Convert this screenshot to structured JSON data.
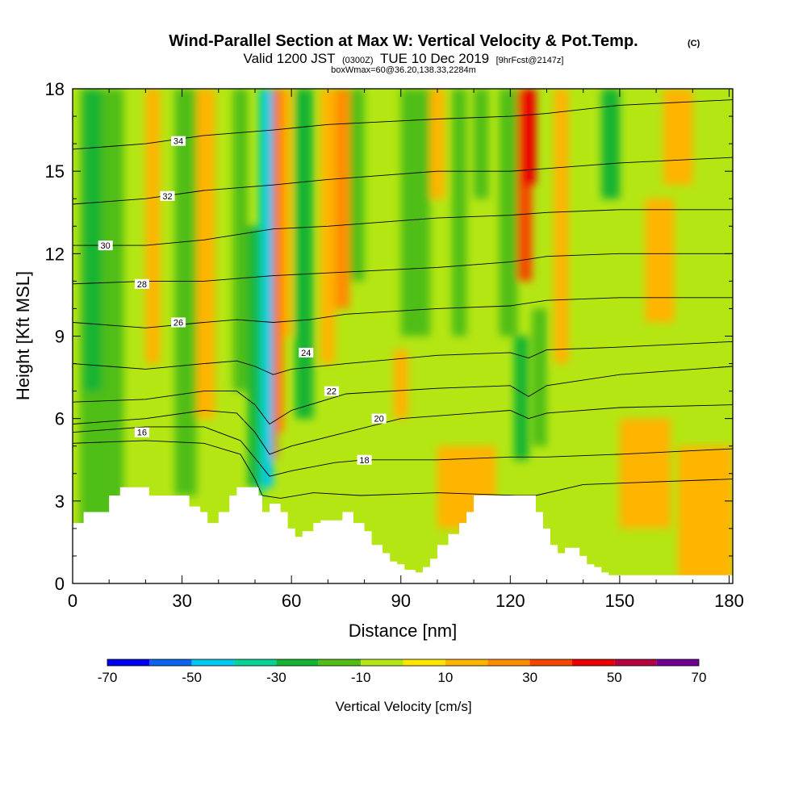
{
  "chart_data": {
    "type": "heatmap",
    "title": "Wind-Parallel Section at Max W: Vertical Velocity & Pot.Temp.",
    "title_mark": "(C)",
    "subtitle": {
      "valid_label": "Valid 1200 JST",
      "utc": "(0300Z)",
      "date": "TUE 10 Dec 2019",
      "forecast": "[9hrFcst@2147z]"
    },
    "box_label": "boxWmax=60@36.20,138.33,2284m",
    "xlabel": "Distance [nm]",
    "ylabel": "Height [Kft MSL]",
    "xlim": [
      0,
      181
    ],
    "ylim": [
      0,
      18
    ],
    "x_ticks": [
      0,
      30,
      60,
      90,
      120,
      150,
      180
    ],
    "y_ticks": [
      0,
      3,
      6,
      9,
      12,
      15,
      18
    ],
    "colorbar": {
      "label": "Vertical Velocity [cm/s]",
      "tick_labels": [
        -70,
        -50,
        -30,
        -10,
        10,
        30,
        50,
        70
      ],
      "colors": [
        "#0000f0",
        "#0a64f0",
        "#00c8f0",
        "#0ad296",
        "#14b432",
        "#50be14",
        "#b4e614",
        "#ffe600",
        "#ffb400",
        "#ff8c00",
        "#f54600",
        "#eb0000",
        "#b4003c",
        "#6e0096"
      ]
    },
    "velocity_features": [
      {
        "kind": "downdraft",
        "x": 54,
        "y_range": [
          3.5,
          18
        ],
        "peak": -55
      },
      {
        "kind": "updraft",
        "x": 56,
        "y_range": [
          4.5,
          18
        ],
        "peak": 45
      },
      {
        "kind": "updraft",
        "x": 124,
        "y_range": [
          12,
          18
        ],
        "peak": 40
      },
      {
        "kind": "downdraft",
        "x": 125,
        "y_range": [
          4.5,
          9
        ],
        "peak": -25
      }
    ],
    "terrain_profile": {
      "x": [
        0,
        3,
        6,
        10,
        13,
        16,
        21,
        29,
        32,
        35,
        37,
        40,
        43,
        45,
        48,
        51,
        52,
        54,
        57,
        59,
        61,
        63,
        66,
        68,
        70,
        74,
        77,
        80,
        82,
        85,
        87,
        89,
        91,
        94,
        96,
        98,
        100,
        103,
        106,
        108,
        110,
        113,
        121,
        124,
        127,
        129,
        131,
        133,
        135,
        137,
        139,
        141,
        143,
        145,
        147,
        149,
        151,
        154,
        157,
        162,
        170,
        174,
        179,
        181
      ],
      "height_kft": [
        2.2,
        2.6,
        2.6,
        3.2,
        3.5,
        3.5,
        3.2,
        3.2,
        2.8,
        2.6,
        2.2,
        2.6,
        3.2,
        3.5,
        3.5,
        3.2,
        2.6,
        2.9,
        2.6,
        2.0,
        1.7,
        1.9,
        2.2,
        2.3,
        2.3,
        2.6,
        2.2,
        1.9,
        1.4,
        1.1,
        0.8,
        0.7,
        0.5,
        0.4,
        0.6,
        0.9,
        1.4,
        1.8,
        2.2,
        2.6,
        3.2,
        3.2,
        3.2,
        3.2,
        2.6,
        2.0,
        1.4,
        1.1,
        1.3,
        1.3,
        1.0,
        0.7,
        0.6,
        0.4,
        0.3,
        0.3,
        0.3,
        0.3,
        0.3,
        0.3,
        0.3,
        0.3,
        0.3,
        0.3
      ]
    },
    "theta_contours": [
      {
        "label": "16",
        "points": [
          [
            0,
            5.1
          ],
          [
            20,
            5.2
          ],
          [
            36,
            5.1
          ],
          [
            46,
            4.7
          ],
          [
            50,
            3.8
          ],
          [
            52,
            3.2
          ],
          [
            57,
            3.1
          ],
          [
            66,
            3.3
          ],
          [
            79,
            3.2
          ],
          [
            100,
            3.3
          ],
          [
            122,
            3.2
          ],
          [
            127,
            3.2
          ],
          [
            140,
            3.6
          ],
          [
            181,
            3.8
          ]
        ],
        "label_at": [
          19,
          5.5
        ]
      },
      {
        "label": "18",
        "points": [
          [
            0,
            5.5
          ],
          [
            20,
            5.7
          ],
          [
            36,
            5.7
          ],
          [
            46,
            5.2
          ],
          [
            51,
            4.4
          ],
          [
            54,
            3.9
          ],
          [
            60,
            4.1
          ],
          [
            72,
            4.4
          ],
          [
            80,
            4.5
          ],
          [
            100,
            4.5
          ],
          [
            120,
            4.6
          ],
          [
            130,
            4.6
          ],
          [
            150,
            4.7
          ],
          [
            181,
            4.9
          ]
        ],
        "label_at": [
          80,
          4.5
        ]
      },
      {
        "label": "20",
        "points": [
          [
            0,
            5.8
          ],
          [
            20,
            6.0
          ],
          [
            36,
            6.3
          ],
          [
            45,
            6.2
          ],
          [
            50,
            5.5
          ],
          [
            54,
            4.7
          ],
          [
            60,
            5.0
          ],
          [
            75,
            5.5
          ],
          [
            90,
            6.0
          ],
          [
            110,
            6.2
          ],
          [
            120,
            6.3
          ],
          [
            125,
            6.0
          ],
          [
            130,
            6.2
          ],
          [
            150,
            6.4
          ],
          [
            181,
            6.5
          ]
        ],
        "label_at": [
          84,
          6.0
        ]
      },
      {
        "label": "22",
        "points": [
          [
            0,
            6.6
          ],
          [
            20,
            6.7
          ],
          [
            36,
            7.0
          ],
          [
            45,
            7.0
          ],
          [
            50,
            6.5
          ],
          [
            54,
            5.8
          ],
          [
            60,
            6.3
          ],
          [
            75,
            6.9
          ],
          [
            100,
            7.1
          ],
          [
            120,
            7.2
          ],
          [
            125,
            6.8
          ],
          [
            130,
            7.2
          ],
          [
            150,
            7.6
          ],
          [
            181,
            7.9
          ]
        ],
        "label_at": [
          71,
          7.0
        ]
      },
      {
        "label": "24",
        "points": [
          [
            0,
            8.0
          ],
          [
            20,
            7.8
          ],
          [
            36,
            8.0
          ],
          [
            45,
            8.1
          ],
          [
            50,
            7.9
          ],
          [
            55,
            7.6
          ],
          [
            60,
            7.8
          ],
          [
            75,
            8.0
          ],
          [
            100,
            8.3
          ],
          [
            120,
            8.4
          ],
          [
            125,
            8.2
          ],
          [
            130,
            8.5
          ],
          [
            150,
            8.6
          ],
          [
            181,
            8.8
          ]
        ],
        "label_at": [
          64,
          8.4
        ]
      },
      {
        "label": "26",
        "points": [
          [
            0,
            9.5
          ],
          [
            20,
            9.3
          ],
          [
            36,
            9.5
          ],
          [
            45,
            9.6
          ],
          [
            55,
            9.5
          ],
          [
            65,
            9.6
          ],
          [
            75,
            9.8
          ],
          [
            100,
            10.0
          ],
          [
            120,
            10.1
          ],
          [
            130,
            10.3
          ],
          [
            150,
            10.4
          ],
          [
            181,
            10.4
          ]
        ],
        "label_at": [
          29,
          9.5
        ]
      },
      {
        "label": "28",
        "points": [
          [
            0,
            10.9
          ],
          [
            20,
            11.0
          ],
          [
            36,
            11.0
          ],
          [
            55,
            11.2
          ],
          [
            70,
            11.3
          ],
          [
            100,
            11.5
          ],
          [
            120,
            11.7
          ],
          [
            130,
            11.9
          ],
          [
            150,
            12.0
          ],
          [
            181,
            12.0
          ]
        ],
        "label_at": [
          19,
          10.9
        ]
      },
      {
        "label": "30",
        "points": [
          [
            0,
            12.3
          ],
          [
            20,
            12.3
          ],
          [
            36,
            12.5
          ],
          [
            55,
            12.9
          ],
          [
            70,
            13.0
          ],
          [
            100,
            13.3
          ],
          [
            120,
            13.4
          ],
          [
            130,
            13.5
          ],
          [
            150,
            13.6
          ],
          [
            181,
            13.6
          ]
        ],
        "label_at": [
          9,
          12.3
        ]
      },
      {
        "label": "32",
        "points": [
          [
            0,
            13.8
          ],
          [
            20,
            14.0
          ],
          [
            36,
            14.3
          ],
          [
            55,
            14.5
          ],
          [
            70,
            14.7
          ],
          [
            100,
            15.0
          ],
          [
            120,
            15.0
          ],
          [
            130,
            15.1
          ],
          [
            150,
            15.3
          ],
          [
            181,
            15.5
          ]
        ],
        "label_at": [
          26,
          14.1
        ]
      },
      {
        "label": "34",
        "points": [
          [
            0,
            15.8
          ],
          [
            20,
            16.0
          ],
          [
            36,
            16.3
          ],
          [
            55,
            16.5
          ],
          [
            70,
            16.7
          ],
          [
            100,
            16.9
          ],
          [
            120,
            17.0
          ],
          [
            130,
            17.1
          ],
          [
            150,
            17.4
          ],
          [
            181,
            17.6
          ]
        ],
        "label_at": [
          29,
          16.1
        ]
      }
    ]
  }
}
